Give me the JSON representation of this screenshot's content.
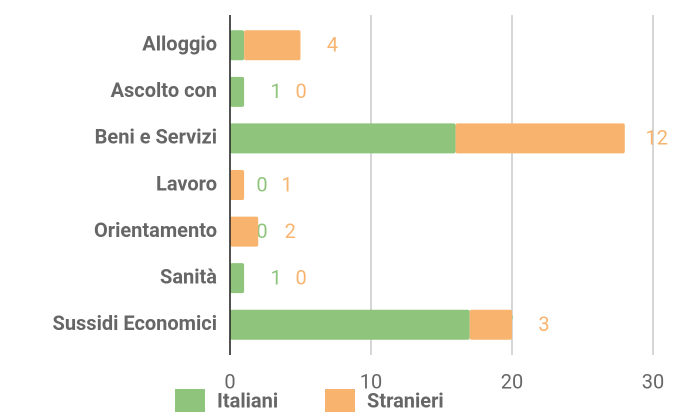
{
  "chart_data": {
    "type": "stacked-barh",
    "categories": [
      "Alloggio",
      "Ascolto con",
      "Beni e Servizi",
      "Lavoro",
      "Orientamento",
      "Sanità",
      "Sussidi Economici"
    ],
    "series": [
      {
        "name": "Italiani",
        "color": "#8ec47b",
        "values": [
          1,
          1,
          16,
          0,
          0,
          1,
          17
        ]
      },
      {
        "name": "Stranieri",
        "color": "#f8b46e",
        "values": [
          4,
          0,
          12,
          1,
          2,
          0,
          3
        ]
      }
    ],
    "xlim": [
      0,
      30
    ],
    "xticks": [
      0,
      10,
      20,
      30
    ],
    "grid": true,
    "legend": "bottom",
    "data_labels": true
  }
}
